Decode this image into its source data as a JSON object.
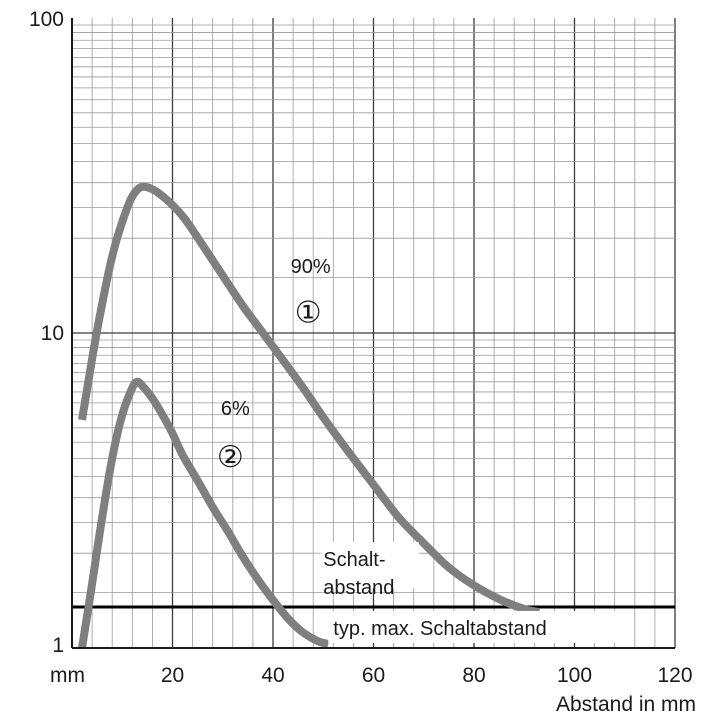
{
  "chart_data": {
    "type": "line",
    "title": "",
    "xlabel": "Abstand in mm",
    "xunit": "mm",
    "ylabel": "",
    "xlim": [
      0,
      120
    ],
    "ylim": [
      1,
      100
    ],
    "yscale": "log",
    "grid": true,
    "x_ticks": [
      20,
      40,
      60,
      80,
      100,
      120
    ],
    "x_tick_labels": [
      "20",
      "40",
      "60",
      "80",
      "100",
      "120"
    ],
    "y_ticks": [
      1,
      10,
      100
    ],
    "y_tick_labels": [
      "1",
      "10",
      "100"
    ],
    "series": [
      {
        "name": "90%",
        "marker": "①",
        "x": [
          2,
          5,
          8,
          11,
          13,
          15,
          18,
          22,
          26,
          30,
          34,
          38,
          42,
          46,
          50,
          55,
          60,
          65,
          70,
          75,
          80,
          85,
          90,
          93
        ],
        "y": [
          5.3,
          10.2,
          17.5,
          25.0,
          28.5,
          29.0,
          27.2,
          23.5,
          19.0,
          15.2,
          12.2,
          10.0,
          8.2,
          6.7,
          5.4,
          4.2,
          3.3,
          2.6,
          2.15,
          1.8,
          1.58,
          1.43,
          1.33,
          1.3
        ],
        "color": "#7f7f7f"
      },
      {
        "name": "6%",
        "marker": "②",
        "x": [
          2,
          4,
          6,
          8,
          10,
          12,
          13,
          14,
          16,
          18,
          20,
          22,
          25,
          28,
          31,
          34,
          37,
          40,
          43,
          46,
          49,
          51
        ],
        "y": [
          1.0,
          1.6,
          2.6,
          4.0,
          5.5,
          6.7,
          7.0,
          6.8,
          6.2,
          5.5,
          4.8,
          4.1,
          3.4,
          2.8,
          2.35,
          1.95,
          1.65,
          1.42,
          1.24,
          1.12,
          1.05,
          1.03
        ],
        "color": "#7f7f7f"
      }
    ],
    "reference_lines": [
      {
        "y": 1.35,
        "label": "typ. max. Schaltabstand",
        "color": "#000000"
      }
    ],
    "annotations": [
      {
        "text": "Schalt-",
        "x": 30,
        "y": 1.9
      },
      {
        "text": "abstand",
        "x": 30,
        "y": 1.55
      }
    ]
  }
}
